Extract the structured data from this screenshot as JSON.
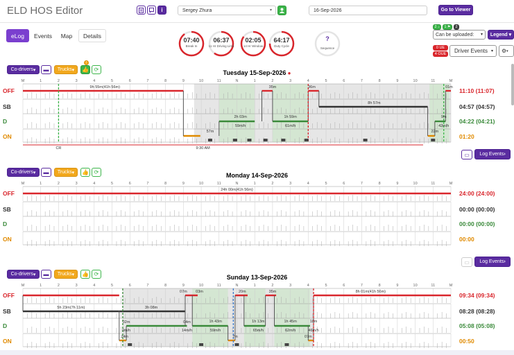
{
  "app": {
    "title": "ELD HOS Editor"
  },
  "header": {
    "driver": "Sergey Zhura",
    "date": "16-Sep-2026",
    "go_to_viewer": "Go to Viewer"
  },
  "tabs": [
    "eLog",
    "Events",
    "Map",
    "Details"
  ],
  "gauges": [
    {
      "value": "07:40",
      "label": "Break In",
      "fraction": 0.9,
      "color": "#d9262c"
    },
    {
      "value": "06:37",
      "label": "11 Hr Driving Limit",
      "fraction": 0.6,
      "color": "#d9262c"
    },
    {
      "value": "02:05",
      "label": "14 Hr Window",
      "fraction": 0.85,
      "color": "#d9262c"
    },
    {
      "value": "64:17",
      "label": "Duty Cycle",
      "fraction": 0.75,
      "color": "#d9262c"
    },
    {
      "value": "?",
      "label": "Sequence",
      "fraction": 0,
      "color": "#ccc"
    }
  ],
  "right_panel": {
    "badge1": "2 ↓",
    "badge2": "1 ⚑",
    "badge3": "2",
    "upload_label": "Can be uploaded:",
    "legend": "Legend",
    "ue": "0 UE",
    "oue": "4 OUE",
    "driver_events": "Driver Events"
  },
  "toolbar": {
    "co_drivers": "Co-drivers",
    "trucks": "Trucks",
    "log_events": "Log Events"
  },
  "hour_labels": [
    "M",
    "1",
    "2",
    "3",
    "4",
    "5",
    "6",
    "7",
    "8",
    "9",
    "10",
    "11",
    "N",
    "1",
    "2",
    "3",
    "4",
    "5",
    "6",
    "7",
    "8",
    "9",
    "10",
    "11",
    "M"
  ],
  "status_labels": [
    "OFF",
    "SB",
    "D",
    "ON"
  ],
  "status_colors": {
    "OFF": "#d9262c",
    "SB": "#333333",
    "D": "#3a8a3a",
    "ON": "#e08a00"
  },
  "days": [
    {
      "title": "Tuesday 15-Sep-2026",
      "totals": [
        "11:10 (11:07)",
        "04:57 (04:57)",
        "04:22 (04:21)",
        "01:20"
      ],
      "annotations": [
        {
          "text": "9h 55m(41h 56m)",
          "x": 4.6,
          "row": 0
        },
        {
          "text": "35m",
          "x": 14.0,
          "row": 0
        },
        {
          "text": "36m",
          "x": 16.2,
          "row": 0
        },
        {
          "text": "8h 57m",
          "x": 19.7,
          "row": 1
        },
        {
          "text": "2h 03m",
          "x": 12.2,
          "row": 2,
          "above": true
        },
        {
          "text": "59m/h",
          "x": 12.2,
          "row": 2,
          "below": true
        },
        {
          "text": "1h 59m",
          "x": 15.0,
          "row": 2,
          "above": true
        },
        {
          "text": "61m/h",
          "x": 15.0,
          "row": 2,
          "below": true
        },
        {
          "text": "57m",
          "x": 10.5,
          "row": 3,
          "above": true
        },
        {
          "text": "9m",
          "x": 23.6,
          "row": 2,
          "above": true
        },
        {
          "text": "42m/h",
          "x": 23.6,
          "row": 2,
          "below": true
        },
        {
          "text": "22m",
          "x": 23.1,
          "row": 3,
          "above": true
        },
        {
          "text": "01m",
          "x": 23.9,
          "row": 0
        },
        {
          "text": "CR",
          "x": 2.0,
          "row": 4
        },
        {
          "text": "9:30 AM",
          "x": 10.1,
          "row": 4
        }
      ]
    },
    {
      "title": "Monday 14-Sep-2026",
      "totals": [
        "24:00 (24:00)",
        "00:00 (00:00)",
        "00:00 (00:00)",
        "00:00"
      ],
      "annotations": [
        {
          "text": "24h 00m(41h 56m)",
          "x": 12.0,
          "row": 0
        }
      ]
    },
    {
      "title": "Sunday 13-Sep-2026",
      "totals": [
        "09:34 (09:34)",
        "08:28 (08:28)",
        "05:08 (05:08)",
        "00:50"
      ],
      "annotations": [
        {
          "text": "07m",
          "x": 9.0,
          "row": 0
        },
        {
          "text": "03m",
          "x": 9.9,
          "row": 0
        },
        {
          "text": "20m",
          "x": 12.3,
          "row": 0
        },
        {
          "text": "35m",
          "x": 14.0,
          "row": 0
        },
        {
          "text": "8h 01m(41h 56m)",
          "x": 19.5,
          "row": 0
        },
        {
          "text": "5h 23m(7h 11m)",
          "x": 2.7,
          "row": 1
        },
        {
          "text": "3h 08m",
          "x": 7.2,
          "row": 1
        },
        {
          "text": "02m",
          "x": 5.8,
          "row": 2
        },
        {
          "text": "0m/h",
          "x": 5.8,
          "row": 2,
          "below": true
        },
        {
          "text": "04m",
          "x": 9.2,
          "row": 2
        },
        {
          "text": "14m/h",
          "x": 9.2,
          "row": 2,
          "below": true
        },
        {
          "text": "1h 43m",
          "x": 10.8,
          "row": 2,
          "above": true
        },
        {
          "text": "59m/h",
          "x": 10.8,
          "row": 2,
          "below": true
        },
        {
          "text": "1h 13m",
          "x": 13.2,
          "row": 2,
          "above": true
        },
        {
          "text": "65m/h",
          "x": 13.2,
          "row": 2,
          "below": true
        },
        {
          "text": "1h 45m",
          "x": 15.0,
          "row": 2,
          "above": true
        },
        {
          "text": "62m/h",
          "x": 15.0,
          "row": 2,
          "below": true
        },
        {
          "text": "18m",
          "x": 16.3,
          "row": 2,
          "above": true
        },
        {
          "text": "46m/h",
          "x": 16.3,
          "row": 2,
          "below": true
        },
        {
          "text": "24m",
          "x": 5.7,
          "row": 3
        },
        {
          "text": "7m",
          "x": 11.9,
          "row": 3
        },
        {
          "text": "07m",
          "x": 16.0,
          "row": 3
        }
      ]
    }
  ]
}
